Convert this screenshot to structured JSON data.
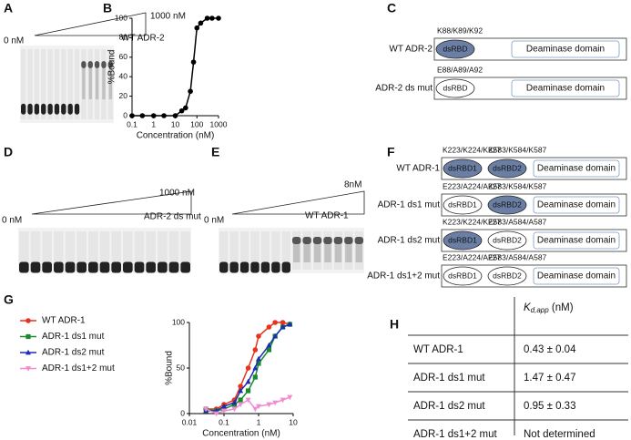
{
  "panels": {
    "A": {
      "label": "A",
      "start": "0 nM",
      "end": "1000 nM",
      "protein": "WT ADR-2"
    },
    "C": {
      "label": "C",
      "rows": [
        {
          "name": "WT ADR-2",
          "residues": "K88/K89/K92",
          "domains": [
            "dsRBD",
            "Deaminase domain"
          ],
          "filled": [
            true
          ]
        },
        {
          "name": "ADR-2 ds mut",
          "residues": "E88/A89/A92",
          "domains": [
            "dsRBD",
            "Deaminase domain"
          ],
          "filled": [
            false
          ]
        }
      ]
    },
    "D": {
      "label": "D",
      "start": "0 nM",
      "end": "1000 nM",
      "protein": "ADR-2 ds mut"
    },
    "E": {
      "label": "E",
      "start": "0 nM",
      "end": "8nM",
      "protein": "WT ADR-1"
    },
    "F": {
      "label": "F",
      "rows": [
        {
          "name": "WT ADR-1",
          "residues1": "K223/K224/K227",
          "residues2": "K583/K584/K587",
          "domains": [
            "dsRBD1",
            "dsRBD2",
            "Deaminase domain"
          ],
          "filled": [
            true,
            true
          ]
        },
        {
          "name": "ADR-1 ds1 mut",
          "residues1": "E223/A224/A227",
          "residues2": "K583/K584/K587",
          "domains": [
            "dsRBD1",
            "dsRBD2",
            "Deaminase domain"
          ],
          "filled": [
            false,
            true
          ]
        },
        {
          "name": "ADR-1 ds2 mut",
          "residues1": "K223/K224/K227",
          "residues2": "E583/A584/A587",
          "domains": [
            "dsRBD1",
            "dsRBD2",
            "Deaminase domain"
          ],
          "filled": [
            true,
            false
          ]
        },
        {
          "name": "ADR-1 ds1+2 mut",
          "residues1": "E223/A224/A227",
          "residues2": "E583/A584/A587",
          "domains": [
            "dsRBD1",
            "dsRBD2",
            "Deaminase domain"
          ],
          "filled": [
            false,
            false
          ]
        }
      ]
    },
    "H": {
      "label": "H",
      "header": {
        "symbol": "K",
        "subscript": "d,app",
        "unit": " (nM)"
      },
      "rows": [
        [
          "WT ADR-1",
          "0.43 ± 0.04"
        ],
        [
          "ADR-1 ds1 mut",
          "1.47 ± 0.47"
        ],
        [
          "ADR-1 ds2 mut",
          "0.95 ± 0.33"
        ],
        [
          "ADR-1 ds1+2 mut",
          "Not determined"
        ]
      ]
    }
  },
  "chart_data": [
    {
      "type": "line",
      "panel_label": "B",
      "xlabel": "Concentration (nM)",
      "ylabel": "%Bound",
      "xscale": "log",
      "xlim": [
        0.1,
        1000
      ],
      "xticks": [
        0.1,
        1,
        10,
        100,
        1000
      ],
      "ylim": [
        0,
        100
      ],
      "yticks": [
        0,
        20,
        40,
        60,
        80,
        100
      ],
      "series": [
        {
          "name": "WT ADR-2",
          "color": "#000000",
          "marker": "circle",
          "x": [
            0.1,
            0.3,
            1,
            3,
            10,
            20,
            30,
            50,
            70,
            100,
            150,
            300,
            500,
            1000
          ],
          "values": [
            0,
            0,
            0,
            0,
            0,
            5,
            8,
            25,
            55,
            90,
            95,
            100,
            100,
            100
          ]
        }
      ]
    },
    {
      "type": "line",
      "panel_label": "G",
      "xlabel": "Concentration (nM)",
      "ylabel": "%Bound",
      "xscale": "log",
      "legend": "left",
      "xlim": [
        0.01,
        10
      ],
      "xticks": [
        0.01,
        0.1,
        1,
        10
      ],
      "ylim": [
        0,
        100
      ],
      "yticks": [
        0,
        50,
        100
      ],
      "x": [
        0.03,
        0.06,
        0.1,
        0.2,
        0.3,
        0.5,
        0.8,
        1,
        2,
        3,
        5,
        8
      ],
      "series": [
        {
          "name": "WT ADR-1",
          "color": "#e8321e",
          "marker": "circle",
          "values": [
            5,
            5,
            10,
            15,
            30,
            50,
            70,
            85,
            95,
            100,
            100,
            98
          ]
        },
        {
          "name": "ADR-1 ds1 mut",
          "color": "#1a8a2e",
          "marker": "square",
          "values": [
            5,
            3,
            5,
            10,
            15,
            25,
            40,
            55,
            70,
            85,
            95,
            98
          ]
        },
        {
          "name": "ADR-1 ds2 mut",
          "color": "#1a2fb0",
          "marker": "triangle",
          "values": [
            3,
            3,
            8,
            12,
            25,
            35,
            50,
            60,
            75,
            85,
            95,
            98
          ]
        },
        {
          "name": "ADR-1 ds1+2 mut",
          "color": "#f08ccf",
          "marker": "down",
          "values": [
            5,
            0,
            3,
            5,
            10,
            15,
            5,
            8,
            10,
            12,
            15,
            18
          ]
        }
      ]
    }
  ]
}
